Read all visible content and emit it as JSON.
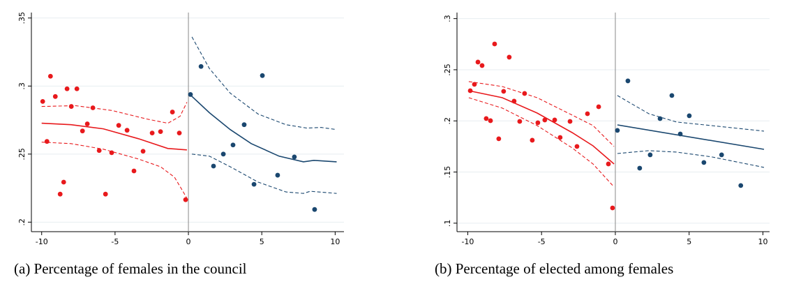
{
  "chart_data": [
    {
      "type": "scatter",
      "caption": "(a) Percentage of females in the council",
      "xlim": [
        -10.7,
        10.6
      ],
      "ylim": [
        0.193,
        0.354
      ],
      "xticks": [
        -10,
        -5,
        0,
        5,
        10
      ],
      "yticks": [
        {
          "value": 0.2,
          "label": ".2"
        },
        {
          "value": 0.25,
          "label": ".25"
        },
        {
          "value": 0.3,
          "label": ".3"
        },
        {
          "value": 0.35,
          "label": ".35"
        }
      ],
      "grid": true,
      "xline": 0,
      "series": [
        {
          "mode": "markers",
          "color": "#e8191c",
          "x": [
            -9.93,
            -9.64,
            -9.4,
            -9.07,
            -8.74,
            -8.5,
            -8.27,
            -7.98,
            -7.6,
            -7.22,
            -6.89,
            -6.51,
            -6.08,
            -5.65,
            -5.23,
            -4.75,
            -4.18,
            -3.71,
            -3.09,
            -2.47,
            -1.9,
            -1.09,
            -0.62,
            -0.19
          ],
          "values": [
            0.2887,
            0.2593,
            0.3072,
            0.2923,
            0.2206,
            0.2294,
            0.298,
            0.285,
            0.298,
            0.267,
            0.2722,
            0.284,
            0.2526,
            0.2206,
            0.251,
            0.2711,
            0.2675,
            0.2376,
            0.2521,
            0.2655,
            0.2665,
            0.2809,
            0.2655,
            0.2165
          ]
        },
        {
          "mode": "markers",
          "color": "#1a476f",
          "x": [
            0.14,
            0.86,
            1.71,
            2.38,
            3.04,
            3.8,
            4.47,
            5.04,
            6.08,
            7.22,
            8.6
          ],
          "values": [
            0.2938,
            0.3144,
            0.2412,
            0.25,
            0.2567,
            0.2716,
            0.2278,
            0.3077,
            0.2345,
            0.2479,
            0.2093
          ]
        },
        {
          "mode": "line",
          "color": "#e8191c",
          "x": [
            -10,
            -8,
            -5.8,
            -3.4,
            -1.4,
            -0.1
          ],
          "values": [
            0.2727,
            0.2716,
            0.2686,
            0.2613,
            0.2541,
            0.2531
          ]
        },
        {
          "mode": "line",
          "dash": true,
          "color": "#e8191c",
          "x": [
            -10,
            -7.7,
            -5.2,
            -2.85,
            -1.4,
            -0.57,
            -0.1
          ],
          "values": [
            0.285,
            0.2856,
            0.282,
            0.2758,
            0.2727,
            0.2778,
            0.2881
          ]
        },
        {
          "mode": "line",
          "dash": true,
          "color": "#e8191c",
          "x": [
            -10,
            -8,
            -5.8,
            -3.4,
            -1.9,
            -0.95,
            -0.38,
            -0.1
          ],
          "values": [
            0.2588,
            0.2577,
            0.2536,
            0.2464,
            0.2407,
            0.233,
            0.2227,
            0.2175
          ]
        },
        {
          "mode": "line",
          "color": "#1a476f",
          "x": [
            0.1,
            1.43,
            2.85,
            4.28,
            6.18,
            7.84,
            8.55,
            10.1
          ],
          "values": [
            0.2938,
            0.2804,
            0.268,
            0.2577,
            0.2485,
            0.2443,
            0.2454,
            0.2443
          ]
        },
        {
          "mode": "line",
          "dash": true,
          "color": "#1a476f",
          "x": [
            0.24,
            1.43,
            2.85,
            4.75,
            6.65,
            8.08,
            9.03,
            10.1
          ],
          "values": [
            0.3361,
            0.3129,
            0.2948,
            0.2794,
            0.2716,
            0.2691,
            0.2696,
            0.268
          ]
        },
        {
          "mode": "line",
          "dash": true,
          "color": "#1a476f",
          "x": [
            0.24,
            1.43,
            2.85,
            4.75,
            6.65,
            7.84,
            8.31,
            10.1
          ],
          "values": [
            0.25,
            0.2485,
            0.2407,
            0.2294,
            0.2222,
            0.2211,
            0.2227,
            0.2211
          ]
        }
      ]
    },
    {
      "type": "scatter",
      "caption": "(b) Percentage of elected among females",
      "xlim": [
        -10.73,
        10.45
      ],
      "ylim": [
        0.0917,
        0.3059
      ],
      "xticks": [
        -10,
        -5,
        0,
        5,
        10
      ],
      "yticks": [
        {
          "value": 0.1,
          "label": ".1"
        },
        {
          "value": 0.15,
          "label": ".15"
        },
        {
          "value": 0.2,
          "label": ".2"
        },
        {
          "value": 0.25,
          "label": ".25"
        },
        {
          "value": 0.3,
          "label": ".3"
        }
      ],
      "grid": true,
      "xline": 0,
      "series": [
        {
          "mode": "markers",
          "color": "#e8191c",
          "x": [
            -9.83,
            -9.55,
            -9.31,
            -9.03,
            -8.75,
            -8.46,
            -8.18,
            -7.9,
            -7.57,
            -7.19,
            -6.86,
            -6.48,
            -6.15,
            -5.63,
            -5.25,
            -4.78,
            -4.11,
            -3.74,
            -3.07,
            -2.6,
            -1.89,
            -1.13,
            -0.47,
            -0.19
          ],
          "values": [
            0.2295,
            0.2357,
            0.2575,
            0.2541,
            0.2023,
            0.2002,
            0.2752,
            0.1825,
            0.2289,
            0.2623,
            0.2193,
            0.1995,
            0.2268,
            0.1811,
            0.1982,
            0.2009,
            0.2009,
            0.1838,
            0.1995,
            0.175,
            0.207,
            0.2138,
            0.1579,
            0.1149
          ]
        },
        {
          "mode": "markers",
          "color": "#1a476f",
          "x": [
            0.14,
            0.85,
            1.65,
            2.36,
            3.03,
            3.83,
            4.4,
            5.01,
            6.0,
            7.2,
            8.5
          ],
          "values": [
            0.1907,
            0.2391,
            0.1538,
            0.1668,
            0.2022,
            0.2248,
            0.1872,
            0.205,
            0.1593,
            0.1668,
            0.1368
          ]
        },
        {
          "mode": "line",
          "color": "#e8191c",
          "x": [
            -9.93,
            -7.66,
            -5.3,
            -2.93,
            -1.51,
            -0.09
          ],
          "values": [
            0.2295,
            0.2227,
            0.2077,
            0.1886,
            0.1756,
            0.1579
          ]
        },
        {
          "mode": "line",
          "dash": true,
          "color": "#e8191c",
          "x": [
            -9.93,
            -7.66,
            -5.3,
            -2.93,
            -1.51,
            -0.09
          ],
          "values": [
            0.2384,
            0.2336,
            0.2227,
            0.2057,
            0.1954,
            0.175
          ]
        },
        {
          "mode": "line",
          "dash": true,
          "color": "#e8191c",
          "x": [
            -9.93,
            -7.66,
            -5.3,
            -2.93,
            -1.51,
            -0.09
          ],
          "values": [
            0.2227,
            0.2125,
            0.1954,
            0.1736,
            0.1579,
            0.1354
          ]
        },
        {
          "mode": "line",
          "color": "#1a476f",
          "x": [
            0.14,
            10.07
          ],
          "values": [
            0.1961,
            0.1722
          ]
        },
        {
          "mode": "line",
          "dash": true,
          "color": "#1a476f",
          "x": [
            0.14,
            2.27,
            4.16,
            6.52,
            10.07
          ],
          "values": [
            0.2248,
            0.207,
            0.1989,
            0.1954,
            0.19
          ]
        },
        {
          "mode": "line",
          "dash": true,
          "color": "#1a476f",
          "x": [
            0.14,
            2.27,
            4.16,
            6.52,
            10.07
          ],
          "values": [
            0.1681,
            0.1709,
            0.1695,
            0.1648,
            0.1545
          ]
        }
      ]
    }
  ]
}
